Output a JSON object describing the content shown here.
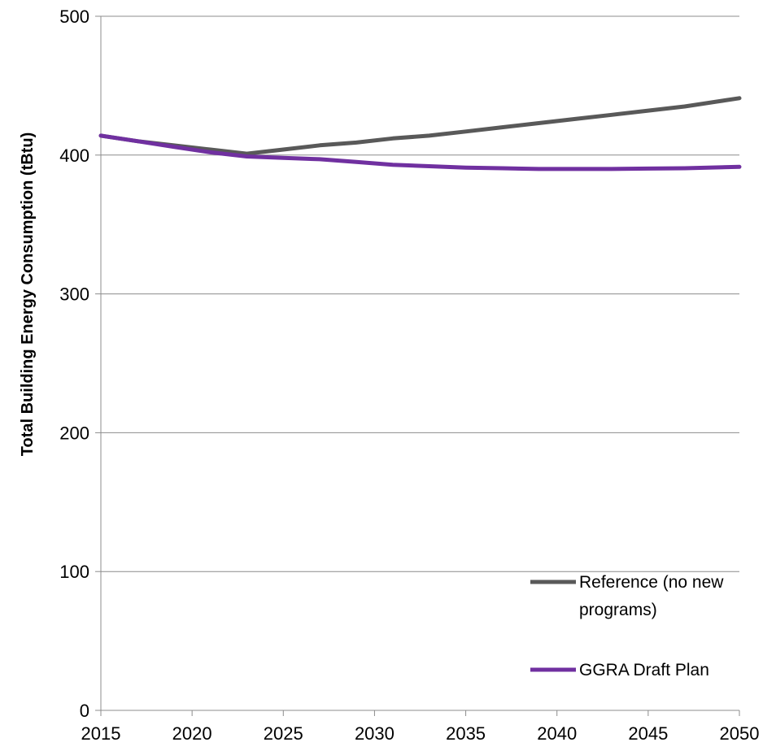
{
  "chart_data": {
    "type": "line",
    "title": "",
    "xlabel": "",
    "ylabel": "Total Building Energy Consumption (tBtu)",
    "xlim": [
      2015,
      2050
    ],
    "ylim": [
      0,
      500
    ],
    "x_ticks": [
      2015,
      2020,
      2025,
      2030,
      2035,
      2040,
      2045,
      2050
    ],
    "y_ticks": [
      0,
      100,
      200,
      300,
      400,
      500
    ],
    "grid": "horizontal",
    "legend_position": "bottom-right",
    "series": [
      {
        "name": "Reference (no new programs)",
        "color": "#595959",
        "x": [
          2015,
          2017,
          2019,
          2021,
          2023,
          2025,
          2027,
          2029,
          2031,
          2033,
          2035,
          2037,
          2039,
          2041,
          2043,
          2045,
          2047,
          2050
        ],
        "y": [
          414,
          410,
          407,
          404,
          401,
          404,
          407,
          409,
          412,
          414,
          417,
          420,
          423,
          426,
          429,
          432,
          435,
          441
        ]
      },
      {
        "name": "GGRA Draft Plan",
        "color": "#7030a0",
        "x": [
          2015,
          2017,
          2019,
          2021,
          2023,
          2025,
          2027,
          2029,
          2031,
          2033,
          2035,
          2037,
          2039,
          2041,
          2043,
          2045,
          2047,
          2050
        ],
        "y": [
          414,
          410,
          406,
          402,
          399,
          398,
          397,
          395,
          393,
          392,
          391,
          390.5,
          390,
          390,
          390,
          390.3,
          390.5,
          391.5
        ]
      }
    ],
    "legend": [
      {
        "lines": [
          "Reference (no new",
          "programs)"
        ],
        "series": 0
      },
      {
        "lines": [
          "GGRA Draft Plan"
        ],
        "series": 1
      }
    ]
  }
}
